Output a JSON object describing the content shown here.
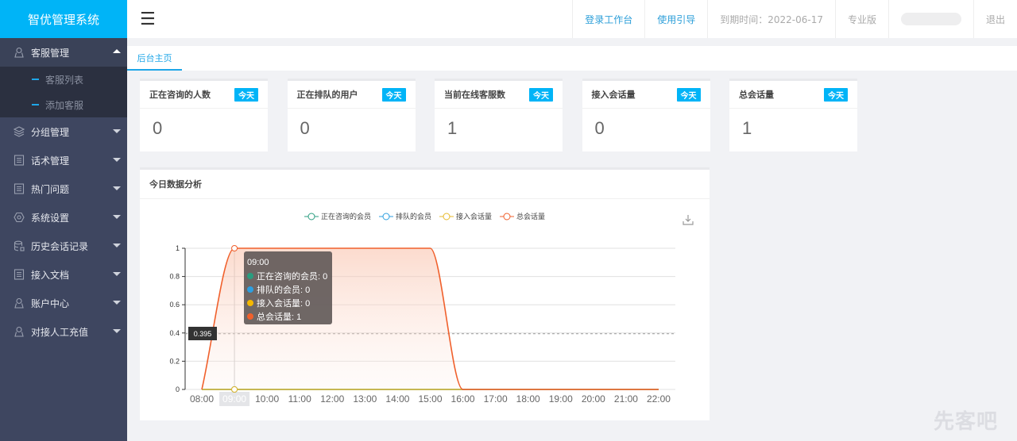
{
  "app": {
    "title": "智优管理系统"
  },
  "sidebar": {
    "items": [
      {
        "label": "客服管理",
        "icon": "user-icon",
        "open": true,
        "children": [
          "客服列表",
          "添加客服"
        ]
      },
      {
        "label": "分组管理",
        "icon": "layers-icon"
      },
      {
        "label": "话术管理",
        "icon": "document-icon"
      },
      {
        "label": "热门问题",
        "icon": "document-icon"
      },
      {
        "label": "系统设置",
        "icon": "gear-icon"
      },
      {
        "label": "历史会话记录",
        "icon": "database-icon"
      },
      {
        "label": "接入文档",
        "icon": "document-icon"
      },
      {
        "label": "账户中心",
        "icon": "user-icon"
      },
      {
        "label": "对接人工充值",
        "icon": "user-icon"
      }
    ]
  },
  "header": {
    "menu_icon": "hamburger-icon",
    "workbench": "登录工作台",
    "guide": "使用引导",
    "expiry": "到期时间：2022-06-17",
    "edition": "专业版",
    "logout": "退出"
  },
  "tabs": [
    {
      "label": "后台主页"
    }
  ],
  "stats": [
    {
      "title": "正在咨询的人数",
      "badge": "今天",
      "value": "0"
    },
    {
      "title": "正在排队的用户",
      "badge": "今天",
      "value": "0"
    },
    {
      "title": "当前在线客服数",
      "badge": "今天",
      "value": "1"
    },
    {
      "title": "接入会话量",
      "badge": "今天",
      "value": "0"
    },
    {
      "title": "总会话量",
      "badge": "今天",
      "value": "1"
    }
  ],
  "chart_panel": {
    "title": "今日数据分析"
  },
  "chart_data": {
    "type": "line",
    "smooth": true,
    "categories": [
      "08:00",
      "09:00",
      "10:00",
      "11:00",
      "12:00",
      "13:00",
      "14:00",
      "15:00",
      "16:00",
      "17:00",
      "18:00",
      "19:00",
      "20:00",
      "21:00",
      "22:00"
    ],
    "yticks": [
      "0",
      "0.2",
      "0.4",
      "0.6",
      "0.8",
      "1"
    ],
    "ylim": [
      0,
      1
    ],
    "grid": true,
    "legend_position": "top",
    "series": [
      {
        "name": "正在咨询的会员",
        "color": "#2a9d7f",
        "values": [
          0,
          0,
          0,
          0,
          0,
          0,
          0,
          0,
          0,
          0,
          0,
          0,
          0,
          0,
          0
        ]
      },
      {
        "name": "排队的会员",
        "color": "#2d9fe0",
        "values": [
          0,
          0,
          0,
          0,
          0,
          0,
          0,
          0,
          0,
          0,
          0,
          0,
          0,
          0,
          0
        ]
      },
      {
        "name": "接入会话量",
        "color": "#e8b92a",
        "values": [
          0,
          0,
          0,
          0,
          0,
          0,
          0,
          0,
          0,
          0,
          0,
          0,
          0,
          0,
          0
        ]
      },
      {
        "name": "总会话量",
        "color": "#f0602c",
        "values": [
          0,
          1,
          1,
          1,
          1,
          1,
          1,
          1,
          0,
          0,
          0,
          0,
          0,
          0,
          0
        ],
        "area": true
      }
    ],
    "tooltip": {
      "title": "09:00",
      "rows": [
        "正在咨询的会员: 0",
        "排队的会员: 0",
        "接入会话量: 0",
        "总会话量: 1"
      ]
    },
    "axis_pointer": {
      "x": "09:00",
      "y_label": "0.395",
      "y": 0.395
    }
  },
  "watermark": "先客吧"
}
